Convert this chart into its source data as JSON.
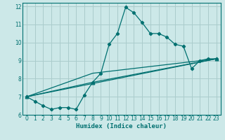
{
  "xlabel": "Humidex (Indice chaleur)",
  "bg_color": "#cce8e8",
  "line_color": "#007070",
  "grid_color": "#aacccc",
  "xlim": [
    -0.5,
    23.5
  ],
  "ylim": [
    6,
    12.2
  ],
  "xticks": [
    0,
    1,
    2,
    3,
    4,
    5,
    6,
    7,
    8,
    9,
    10,
    11,
    12,
    13,
    14,
    15,
    16,
    17,
    18,
    19,
    20,
    21,
    22,
    23
  ],
  "yticks": [
    6,
    7,
    8,
    9,
    10,
    11,
    12
  ],
  "line1_x": [
    0,
    1,
    2,
    3,
    4,
    5,
    6,
    7,
    8,
    9,
    10,
    11,
    12,
    13,
    14,
    15,
    16,
    17,
    18,
    19,
    20,
    21,
    22,
    23
  ],
  "line1_y": [
    7.0,
    6.75,
    6.5,
    6.3,
    6.4,
    6.4,
    6.3,
    7.1,
    7.8,
    8.3,
    9.9,
    10.5,
    11.95,
    11.65,
    11.1,
    10.5,
    10.5,
    10.3,
    9.9,
    9.8,
    8.55,
    9.0,
    9.1,
    9.1
  ],
  "line2_x": [
    0,
    23
  ],
  "line2_y": [
    7.0,
    9.1
  ],
  "line3_x": [
    0,
    8,
    23
  ],
  "line3_y": [
    7.0,
    7.8,
    9.1
  ],
  "line4_x": [
    0,
    8,
    23
  ],
  "line4_y": [
    7.0,
    8.3,
    9.1
  ],
  "tick_fontsize": 5.5,
  "xlabel_fontsize": 6.5
}
